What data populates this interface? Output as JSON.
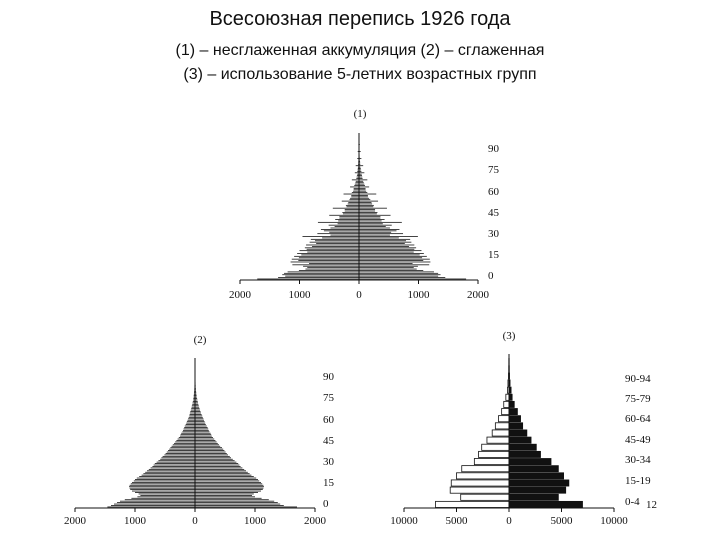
{
  "title": "Всесоюзная перепись 1926 года",
  "subtitle_line1": "(1) – несглаженная аккумуляция (2) – сглаженная",
  "subtitle_line2": "(3) – использование 5-летних возрастных групп",
  "chart_data": [
    {
      "type": "bar",
      "orientation": "horizontal",
      "panel_label": "(1)",
      "title": "",
      "xlabel": "",
      "ylabel": "",
      "x_tick_labels": [
        "2000",
        "1000",
        "0",
        "1000",
        "2000"
      ],
      "xlim": [
        -2000,
        2000
      ],
      "y_tick_labels": [
        "90",
        "75",
        "60",
        "45",
        "30",
        "15",
        "0"
      ],
      "y_tick_values": [
        90,
        75,
        60,
        45,
        30,
        15,
        0
      ],
      "ylim": [
        0,
        100
      ],
      "grid": false,
      "colors": {
        "left": "#111111",
        "right": "#111111"
      },
      "ages": [
        0,
        1,
        2,
        3,
        4,
        5,
        6,
        7,
        8,
        9,
        10,
        11,
        12,
        13,
        14,
        15,
        16,
        17,
        18,
        19,
        20,
        21,
        22,
        23,
        24,
        25,
        26,
        27,
        28,
        29,
        30,
        31,
        32,
        33,
        34,
        35,
        36,
        37,
        38,
        39,
        40,
        41,
        42,
        43,
        44,
        45,
        46,
        47,
        48,
        49,
        50,
        51,
        52,
        53,
        54,
        55,
        56,
        57,
        58,
        59,
        60,
        61,
        62,
        63,
        64,
        65,
        66,
        67,
        68,
        69,
        70,
        71,
        72,
        73,
        74,
        75,
        76,
        77,
        78,
        79,
        80,
        81,
        82,
        83,
        84,
        85,
        86,
        87,
        88,
        89,
        90,
        91,
        92,
        93,
        94,
        95,
        96,
        97,
        98,
        99,
        100
      ],
      "series": [
        {
          "side": "left",
          "values": [
            1710,
            1360,
            1240,
            1290,
            1260,
            1200,
            1010,
            900,
            870,
            940,
            1120,
            840,
            1150,
            1020,
            1130,
            1010,
            1090,
            970,
            1040,
            870,
            1000,
            880,
            910,
            790,
            890,
            720,
            830,
            740,
            810,
            620,
            950,
            480,
            700,
            500,
            590,
            640,
            480,
            410,
            510,
            360,
            690,
            350,
            400,
            330,
            330,
            500,
            270,
            280,
            240,
            240,
            440,
            210,
            220,
            190,
            180,
            290,
            160,
            150,
            130,
            130,
            260,
            120,
            100,
            90,
            90,
            150,
            80,
            70,
            60,
            55,
            120,
            45,
            40,
            35,
            30,
            70,
            30,
            25,
            20,
            18,
            55,
            16,
            14,
            12,
            10,
            30,
            9,
            8,
            7,
            6,
            22,
            5,
            5,
            4,
            4,
            10,
            3,
            3,
            2,
            2,
            2
          ]
        },
        {
          "side": "right",
          "values": [
            1800,
            1450,
            1330,
            1370,
            1330,
            1260,
            1080,
            970,
            920,
            990,
            1180,
            900,
            1200,
            1080,
            1190,
            1060,
            1140,
            1020,
            1090,
            920,
            1050,
            930,
            960,
            840,
            930,
            770,
            880,
            790,
            860,
            670,
            990,
            520,
            740,
            540,
            630,
            680,
            520,
            450,
            550,
            400,
            720,
            380,
            430,
            360,
            360,
            530,
            300,
            310,
            270,
            270,
            470,
            240,
            250,
            220,
            210,
            320,
            190,
            170,
            150,
            150,
            290,
            140,
            120,
            110,
            110,
            170,
            100,
            90,
            80,
            70,
            140,
            60,
            55,
            50,
            45,
            90,
            40,
            35,
            30,
            25,
            70,
            22,
            20,
            18,
            15,
            40,
            12,
            10,
            9,
            8,
            28,
            7,
            6,
            5,
            5,
            14,
            4,
            4,
            3,
            3,
            3
          ]
        }
      ]
    },
    {
      "type": "bar",
      "orientation": "horizontal",
      "panel_label": "(2)",
      "title": "",
      "xlabel": "",
      "ylabel": "",
      "x_tick_labels": [
        "2000",
        "1000",
        "0",
        "1000",
        "2000"
      ],
      "xlim": [
        -2000,
        2000
      ],
      "y_tick_labels": [
        "90",
        "75",
        "60",
        "45",
        "30",
        "15",
        "0"
      ],
      "y_tick_values": [
        90,
        75,
        60,
        45,
        30,
        15,
        0
      ],
      "ylim": [
        0,
        100
      ],
      "grid": false,
      "colors": {
        "left": "#111111",
        "right": "#111111"
      },
      "ages": [
        0,
        1,
        2,
        3,
        4,
        5,
        6,
        7,
        8,
        9,
        10,
        11,
        12,
        13,
        14,
        15,
        16,
        17,
        18,
        19,
        20,
        21,
        22,
        23,
        24,
        25,
        26,
        27,
        28,
        29,
        30,
        31,
        32,
        33,
        34,
        35,
        36,
        37,
        38,
        39,
        40,
        41,
        42,
        43,
        44,
        45,
        46,
        47,
        48,
        49,
        50,
        51,
        52,
        53,
        54,
        55,
        56,
        57,
        58,
        59,
        60,
        61,
        62,
        63,
        64,
        65,
        66,
        67,
        68,
        69,
        70,
        71,
        72,
        73,
        74,
        75,
        76,
        77,
        78,
        79,
        80,
        81,
        82,
        83,
        84,
        85,
        86,
        87,
        88,
        89,
        90,
        91,
        92,
        93,
        94,
        95,
        96,
        97,
        98,
        99,
        100
      ],
      "series": [
        {
          "side": "left",
          "values": [
            1460,
            1400,
            1350,
            1300,
            1250,
            1170,
            1060,
            960,
            910,
            940,
            1000,
            1050,
            1080,
            1090,
            1100,
            1090,
            1070,
            1050,
            1020,
            1000,
            970,
            930,
            890,
            860,
            830,
            800,
            770,
            740,
            710,
            690,
            670,
            640,
            610,
            580,
            560,
            540,
            510,
            490,
            470,
            450,
            430,
            410,
            390,
            370,
            350,
            330,
            310,
            290,
            270,
            250,
            240,
            230,
            210,
            200,
            190,
            180,
            170,
            155,
            145,
            135,
            125,
            115,
            105,
            95,
            90,
            85,
            78,
            70,
            63,
            57,
            52,
            46,
            41,
            36,
            32,
            28,
            25,
            22,
            19,
            17,
            15,
            13,
            11,
            10,
            9,
            8,
            7,
            6,
            5,
            5,
            4,
            4,
            3,
            3,
            3,
            2,
            2,
            2,
            2,
            2,
            2
          ]
        },
        {
          "side": "right",
          "values": [
            1700,
            1480,
            1420,
            1380,
            1320,
            1230,
            1110,
            1000,
            950,
            980,
            1050,
            1100,
            1130,
            1140,
            1150,
            1140,
            1120,
            1100,
            1070,
            1050,
            1020,
            980,
            940,
            910,
            880,
            850,
            820,
            790,
            760,
            740,
            720,
            690,
            660,
            630,
            600,
            580,
            550,
            530,
            510,
            490,
            470,
            450,
            420,
            400,
            380,
            360,
            340,
            320,
            300,
            280,
            270,
            260,
            240,
            230,
            220,
            210,
            195,
            180,
            170,
            160,
            150,
            140,
            130,
            120,
            110,
            100,
            92,
            84,
            76,
            69,
            62,
            56,
            50,
            45,
            40,
            35,
            31,
            27,
            24,
            21,
            18,
            16,
            14,
            12,
            11,
            10,
            9,
            8,
            7,
            6,
            5,
            5,
            4,
            4,
            3,
            3,
            3,
            2,
            2,
            2,
            2
          ]
        }
      ]
    },
    {
      "type": "bar",
      "orientation": "horizontal",
      "panel_label": "(3)",
      "title": "",
      "xlabel": "",
      "ylabel": "",
      "x_tick_labels": [
        "10000",
        "5000",
        "0",
        "5000",
        "10000"
      ],
      "xlim": [
        -10000,
        10000
      ],
      "y_tick_labels": [
        "90-94",
        "75-79",
        "60-64",
        "45-49",
        "30-34",
        "15-19",
        "0-4"
      ],
      "grid": false,
      "annotation": "12",
      "colors": {
        "left": "#ffffff",
        "right": "#111111",
        "edge": "#111111"
      },
      "categories": [
        "0-4",
        "5-9",
        "10-14",
        "15-19",
        "20-24",
        "25-29",
        "30-34",
        "35-39",
        "40-44",
        "45-49",
        "50-54",
        "55-59",
        "60-64",
        "65-69",
        "70-74",
        "75-79",
        "80-84",
        "85-89",
        "90-94",
        "95-99",
        "100-104"
      ],
      "series": [
        {
          "side": "left",
          "fill": "white",
          "values": [
            7000,
            4600,
            5600,
            5500,
            5000,
            4500,
            3300,
            2900,
            2600,
            2100,
            1600,
            1300,
            1000,
            700,
            500,
            300,
            150,
            100,
            50,
            30,
            20
          ]
        },
        {
          "side": "right",
          "fill": "black",
          "values": [
            7000,
            4700,
            5400,
            5700,
            5200,
            4700,
            4000,
            3000,
            2600,
            2100,
            1700,
            1300,
            1100,
            800,
            500,
            300,
            200,
            100,
            50,
            30,
            20
          ]
        }
      ]
    }
  ]
}
